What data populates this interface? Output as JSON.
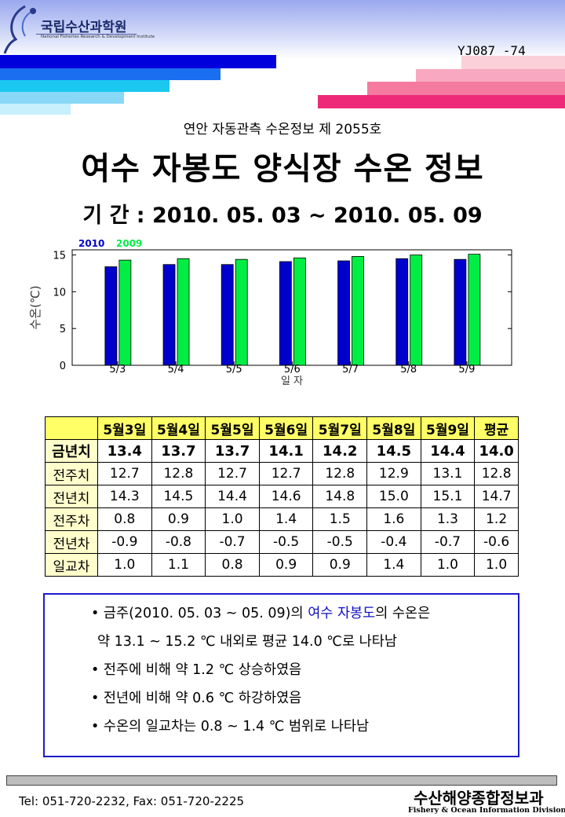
{
  "header": {
    "logo_name": "국립수산과학원",
    "logo_subtitle": "National Fisheries Research & Development Institute",
    "doc_number": "YJ087 -74"
  },
  "subtitle": "연안 자동관측 수온정보 제 2055호",
  "title": "여수 자봉도 양식장 수온 정보",
  "period": "기 간 : 2010. 05. 03 ~ 2010. 05. 09",
  "chart_data": {
    "type": "bar",
    "categories": [
      "5/3",
      "5/4",
      "5/5",
      "5/6",
      "5/7",
      "5/8",
      "5/9"
    ],
    "series": [
      {
        "name": "2010",
        "color": "#0000cc",
        "values": [
          13.4,
          13.7,
          13.7,
          14.1,
          14.2,
          14.5,
          14.4
        ]
      },
      {
        "name": "2009",
        "color": "#00ee44",
        "values": [
          14.3,
          14.5,
          14.4,
          14.6,
          14.8,
          15.0,
          15.1
        ]
      }
    ],
    "xlabel": "일 자",
    "ylabel": "수온(℃)",
    "yticks": [
      0,
      5,
      10,
      15
    ],
    "ylim": [
      0,
      15.7
    ],
    "grid": false,
    "legend": "top-left"
  },
  "table": {
    "headers": [
      "",
      "5월3일",
      "5월4일",
      "5월5일",
      "5월6일",
      "5월7일",
      "5월8일",
      "5월9일",
      "평균"
    ],
    "rows": [
      {
        "label": "금년치",
        "values": [
          "13.4",
          "13.7",
          "13.7",
          "14.1",
          "14.2",
          "14.5",
          "14.4",
          "14.0"
        ]
      },
      {
        "label": "전주치",
        "values": [
          "12.7",
          "12.8",
          "12.7",
          "12.7",
          "12.8",
          "12.9",
          "13.1",
          "12.8"
        ]
      },
      {
        "label": "전년치",
        "values": [
          "14.3",
          "14.5",
          "14.4",
          "14.6",
          "14.8",
          "15.0",
          "15.1",
          "14.7"
        ]
      },
      {
        "label": "전주차",
        "values": [
          "0.8",
          "0.9",
          "1.0",
          "1.4",
          "1.5",
          "1.6",
          "1.3",
          "1.2"
        ]
      },
      {
        "label": "전년차",
        "values": [
          "-0.9",
          "-0.8",
          "-0.7",
          "-0.5",
          "-0.5",
          "-0.4",
          "-0.7",
          "-0.6"
        ]
      },
      {
        "label": "일교차",
        "values": [
          "1.0",
          "1.1",
          "0.8",
          "0.9",
          "0.9",
          "1.4",
          "1.0",
          "1.0"
        ]
      }
    ]
  },
  "summary": {
    "line1_pre": "• 금주(2010. 05. 03 ~ 05. 09)의 ",
    "line1_highlight": "여수 자봉도",
    "line1_post": "의 수온은",
    "line2": "약 13.1 ~ 15.2 ℃ 내외로 평균 14.0 ℃로 나타남",
    "line3": "• 전주에 비해 약 1.2 ℃ 상승하였음",
    "line4": "• 전년에 비해 약 0.6 ℃ 하강하였음",
    "line5": "• 수온의 일교차는 0.8 ~ 1.4 ℃ 범위로 나타남",
    "highlight_color": "#1010c0"
  },
  "footer": {
    "contact": "Tel: 051-720-2232,  Fax: 051-720-2225",
    "org_name": "수산해양종합정보과",
    "org_name_en": "Fishery & Ocean Information Division"
  }
}
